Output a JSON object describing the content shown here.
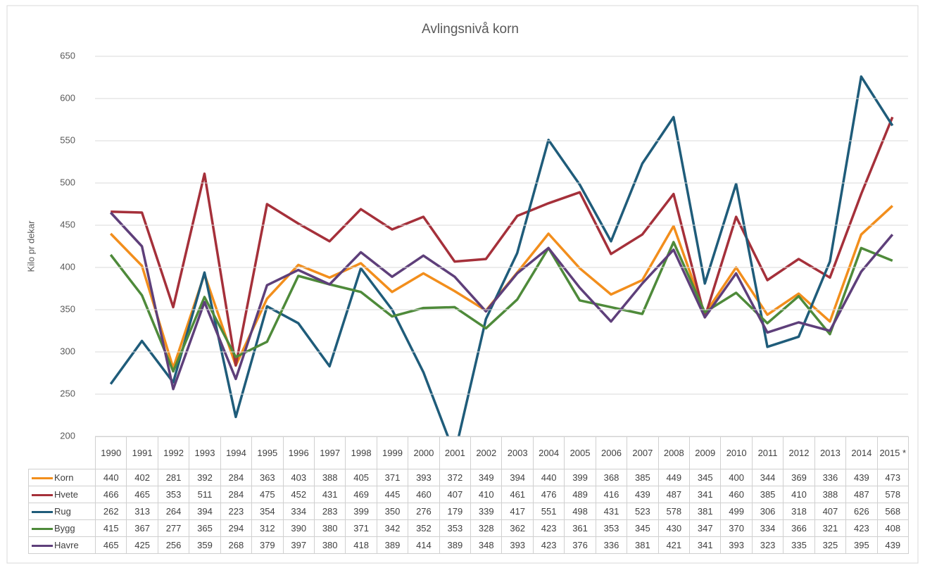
{
  "chart_data": {
    "type": "line",
    "title": "Avlingsnivå korn",
    "y_label": "Kilo pr dekar",
    "categories": [
      "1990",
      "1991",
      "1992",
      "1993",
      "1994",
      "1995",
      "1996",
      "1997",
      "1998",
      "1999",
      "2000",
      "2001",
      "2002",
      "2003",
      "2004",
      "2005",
      "2006",
      "2007",
      "2008",
      "2009",
      "2010",
      "2011",
      "2012",
      "2013",
      "2014",
      "2015 *"
    ],
    "series": [
      {
        "name": "Korn",
        "color": "#f28e1c",
        "values": [
          440,
          402,
          281,
          392,
          284,
          363,
          403,
          388,
          405,
          371,
          393,
          372,
          349,
          394,
          440,
          399,
          368,
          385,
          449,
          345,
          400,
          344,
          369,
          336,
          439,
          473
        ]
      },
      {
        "name": "Hvete",
        "color": "#a5303a",
        "values": [
          466,
          465,
          353,
          511,
          284,
          475,
          452,
          431,
          469,
          445,
          460,
          407,
          410,
          461,
          476,
          489,
          416,
          439,
          487,
          341,
          460,
          385,
          410,
          388,
          487,
          578
        ]
      },
      {
        "name": "Rug",
        "color": "#1f5c7a",
        "values": [
          262,
          313,
          264,
          394,
          223,
          354,
          334,
          283,
          399,
          350,
          276,
          179,
          339,
          417,
          551,
          498,
          431,
          523,
          578,
          381,
          499,
          306,
          318,
          407,
          626,
          568
        ]
      },
      {
        "name": "Bygg",
        "color": "#4e8a3a",
        "values": [
          415,
          367,
          277,
          365,
          294,
          312,
          390,
          380,
          371,
          342,
          352,
          353,
          328,
          362,
          423,
          361,
          353,
          345,
          430,
          347,
          370,
          334,
          366,
          321,
          423,
          408
        ]
      },
      {
        "name": "Havre",
        "color": "#5e3f7a",
        "values": [
          465,
          425,
          256,
          359,
          268,
          379,
          397,
          380,
          418,
          389,
          414,
          389,
          348,
          393,
          423,
          376,
          336,
          381,
          421,
          341,
          393,
          323,
          335,
          325,
          395,
          439
        ]
      }
    ],
    "ylim": [
      200,
      650
    ],
    "yticks": [
      200,
      250,
      300,
      350,
      400,
      450,
      500,
      550,
      600,
      650
    ],
    "grid": true,
    "data_table": true
  }
}
